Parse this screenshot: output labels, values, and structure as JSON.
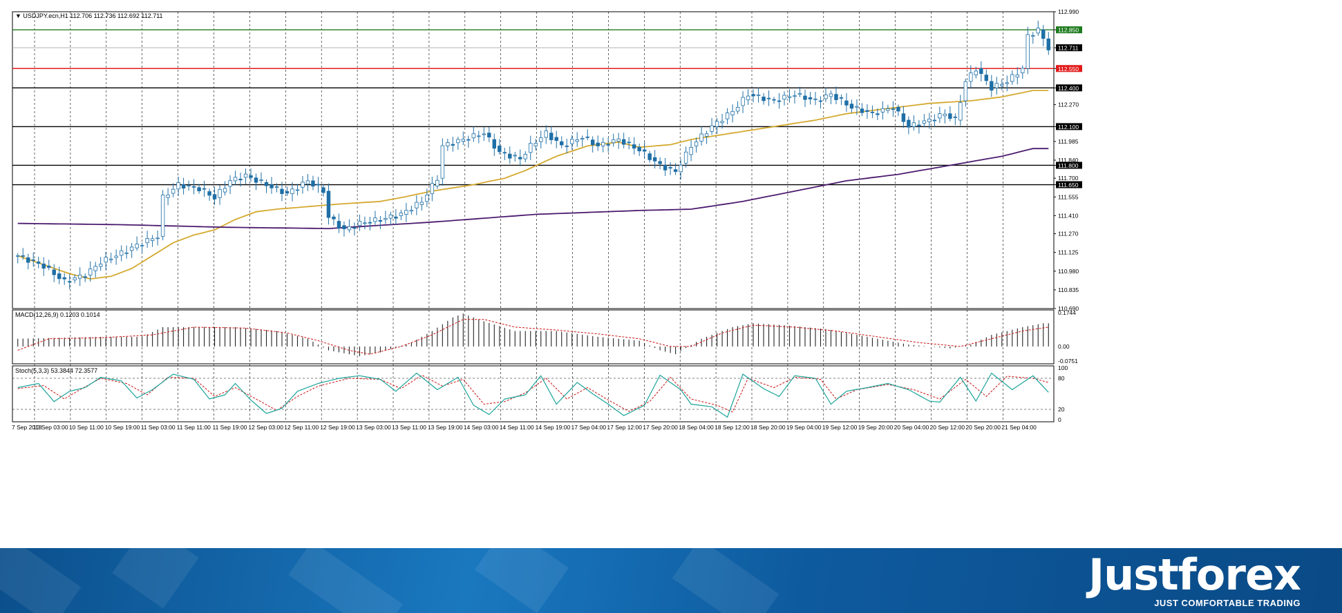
{
  "chart_data": [
    {
      "type": "candlestick",
      "title": "USDJPY.ecn,H1",
      "ohlc_header": "112.706 112.736 112.692 112.711",
      "last_price": "112.711",
      "ylim": [
        110.69,
        112.99
      ],
      "price_ticks": [
        "112.990",
        "112.850",
        "112.711",
        "112.550",
        "112.400",
        "112.270",
        "112.100",
        "111.985",
        "111.840",
        "111.800",
        "111.700",
        "111.650",
        "111.555",
        "111.410",
        "111.270",
        "111.125",
        "110.980",
        "110.835",
        "110.690"
      ],
      "grid": "dashed vertical",
      "levels": [
        {
          "price": 112.85,
          "label": "112.850",
          "color": "#1e7a1e"
        },
        {
          "price": 112.55,
          "label": "112.550",
          "color": "#e21a1a"
        },
        {
          "price": 112.4,
          "label": "112.400",
          "color": "#000000"
        },
        {
          "price": 112.1,
          "label": "112.100",
          "color": "#000000"
        },
        {
          "price": 111.8,
          "label": "111.800",
          "color": "#000000"
        },
        {
          "price": 111.65,
          "label": "111.650",
          "color": "#000000"
        }
      ],
      "moving_averages": [
        {
          "color": "#d4a92f",
          "anchors": [
            [
              0,
              111.1
            ],
            [
              5,
              111.03
            ],
            [
              10,
              110.96
            ],
            [
              14,
              110.92
            ],
            [
              18,
              110.94
            ],
            [
              22,
              111.0
            ],
            [
              26,
              111.1
            ],
            [
              30,
              111.2
            ],
            [
              34,
              111.26
            ],
            [
              38,
              111.3
            ],
            [
              42,
              111.38
            ],
            [
              46,
              111.44
            ],
            [
              50,
              111.46
            ],
            [
              56,
              111.48
            ],
            [
              62,
              111.5
            ],
            [
              70,
              111.52
            ],
            [
              74,
              111.55
            ],
            [
              80,
              111.6
            ],
            [
              88,
              111.65
            ],
            [
              94,
              111.7
            ],
            [
              98,
              111.76
            ],
            [
              104,
              111.87
            ],
            [
              110,
              111.95
            ],
            [
              116,
              111.98
            ],
            [
              120,
              111.94
            ],
            [
              126,
              111.96
            ],
            [
              130,
              112.0
            ],
            [
              138,
              112.05
            ],
            [
              146,
              112.1
            ],
            [
              154,
              112.15
            ],
            [
              160,
              112.2
            ],
            [
              166,
              112.23
            ],
            [
              172,
              112.26
            ],
            [
              176,
              112.28
            ],
            [
              184,
              112.3
            ],
            [
              190,
              112.33
            ],
            [
              196,
              112.38
            ]
          ]
        },
        {
          "color": "#4b1a6e",
          "anchors": [
            [
              0,
              111.35
            ],
            [
              20,
              111.34
            ],
            [
              40,
              111.32
            ],
            [
              60,
              111.31
            ],
            [
              80,
              111.36
            ],
            [
              100,
              111.42
            ],
            [
              120,
              111.45
            ],
            [
              130,
              111.46
            ],
            [
              140,
              111.52
            ],
            [
              150,
              111.6
            ],
            [
              160,
              111.68
            ],
            [
              170,
              111.73
            ],
            [
              180,
              111.8
            ],
            [
              190,
              111.87
            ],
            [
              196,
              111.93
            ]
          ]
        }
      ],
      "path_anchors": [
        [
          0,
          111.1
        ],
        [
          5,
          111.02
        ],
        [
          9,
          110.9
        ],
        [
          13,
          110.95
        ],
        [
          16,
          111.05
        ],
        [
          20,
          111.12
        ],
        [
          24,
          111.2
        ],
        [
          27,
          111.25
        ],
        [
          28,
          111.55
        ],
        [
          31,
          111.65
        ],
        [
          35,
          111.62
        ],
        [
          38,
          111.55
        ],
        [
          41,
          111.68
        ],
        [
          44,
          111.72
        ],
        [
          48,
          111.65
        ],
        [
          52,
          111.58
        ],
        [
          56,
          111.68
        ],
        [
          59,
          111.6
        ],
        [
          60,
          111.4
        ],
        [
          63,
          111.3
        ],
        [
          66,
          111.35
        ],
        [
          70,
          111.38
        ],
        [
          74,
          111.42
        ],
        [
          78,
          111.52
        ],
        [
          81,
          111.7
        ],
        [
          82,
          111.95
        ],
        [
          86,
          112.0
        ],
        [
          90,
          112.05
        ],
        [
          93,
          111.9
        ],
        [
          97,
          111.85
        ],
        [
          99,
          111.95
        ],
        [
          102,
          112.05
        ],
        [
          105,
          111.95
        ],
        [
          109,
          112.02
        ],
        [
          112,
          111.95
        ],
        [
          116,
          112.0
        ],
        [
          120,
          111.92
        ],
        [
          124,
          111.8
        ],
        [
          127,
          111.75
        ],
        [
          130,
          111.95
        ],
        [
          134,
          112.1
        ],
        [
          138,
          112.22
        ],
        [
          141,
          112.35
        ],
        [
          146,
          112.3
        ],
        [
          150,
          112.35
        ],
        [
          154,
          112.3
        ],
        [
          157,
          112.35
        ],
        [
          161,
          112.25
        ],
        [
          165,
          112.2
        ],
        [
          169,
          112.25
        ],
        [
          172,
          112.1
        ],
        [
          176,
          112.15
        ],
        [
          179,
          112.2
        ],
        [
          181,
          112.15
        ],
        [
          183,
          112.45
        ],
        [
          185,
          112.55
        ],
        [
          188,
          112.4
        ],
        [
          191,
          112.45
        ],
        [
          194,
          112.55
        ],
        [
          195,
          112.8
        ],
        [
          197,
          112.85
        ],
        [
          199,
          112.71
        ]
      ],
      "x_tick_labels": [
        "7 Sep 2018",
        "10 Sep 03:00",
        "10 Sep 11:00",
        "10 Sep 19:00",
        "11 Sep 03:00",
        "11 Sep 11:00",
        "11 Sep 19:00",
        "12 Sep 03:00",
        "12 Sep 11:00",
        "12 Sep 19:00",
        "13 Sep 03:00",
        "13 Sep 11:00",
        "13 Sep 19:00",
        "14 Sep 03:00",
        "14 Sep 11:00",
        "14 Sep 19:00",
        "17 Sep 04:00",
        "17 Sep 12:00",
        "17 Sep 20:00",
        "18 Sep 04:00",
        "18 Sep 12:00",
        "18 Sep 20:00",
        "19 Sep 04:00",
        "19 Sep 12:00",
        "19 Sep 20:00",
        "20 Sep 04:00",
        "20 Sep 12:00",
        "20 Sep 20:00",
        "21 Sep 04:00"
      ]
    },
    {
      "type": "histogram",
      "title": "MACD(12,26,9) 0.1203 0.1014",
      "ylim": [
        -0.0751,
        0.1744
      ],
      "ticks": [
        "0.1744",
        "0.00",
        "-0.0751"
      ],
      "signal_color": "#cc1111",
      "hist_anchors": [
        [
          0,
          0.04
        ],
        [
          8,
          0.045
        ],
        [
          16,
          0.05
        ],
        [
          24,
          0.05
        ],
        [
          28,
          0.1
        ],
        [
          34,
          0.1
        ],
        [
          42,
          0.1
        ],
        [
          50,
          0.08
        ],
        [
          56,
          0.04
        ],
        [
          60,
          -0.02
        ],
        [
          66,
          -0.05
        ],
        [
          70,
          -0.03
        ],
        [
          76,
          0.02
        ],
        [
          80,
          0.08
        ],
        [
          84,
          0.15
        ],
        [
          86,
          0.17
        ],
        [
          90,
          0.13
        ],
        [
          96,
          0.08
        ],
        [
          104,
          0.08
        ],
        [
          112,
          0.05
        ],
        [
          120,
          0.03
        ],
        [
          124,
          -0.02
        ],
        [
          127,
          -0.04
        ],
        [
          132,
          0.04
        ],
        [
          138,
          0.1
        ],
        [
          142,
          0.12
        ],
        [
          148,
          0.11
        ],
        [
          156,
          0.09
        ],
        [
          164,
          0.05
        ],
        [
          172,
          0.01
        ],
        [
          180,
          -0.01
        ],
        [
          184,
          0.01
        ],
        [
          188,
          0.06
        ],
        [
          194,
          0.1
        ],
        [
          198,
          0.12
        ]
      ],
      "signal_anchors": [
        [
          0,
          -0.02
        ],
        [
          6,
          0.04
        ],
        [
          16,
          0.045
        ],
        [
          26,
          0.06
        ],
        [
          34,
          0.1
        ],
        [
          44,
          0.095
        ],
        [
          52,
          0.07
        ],
        [
          58,
          0.03
        ],
        [
          64,
          -0.02
        ],
        [
          68,
          -0.04
        ],
        [
          74,
          0.0
        ],
        [
          80,
          0.06
        ],
        [
          86,
          0.14
        ],
        [
          90,
          0.14
        ],
        [
          96,
          0.1
        ],
        [
          104,
          0.085
        ],
        [
          112,
          0.065
        ],
        [
          120,
          0.04
        ],
        [
          126,
          0.0
        ],
        [
          130,
          0.0
        ],
        [
          136,
          0.07
        ],
        [
          142,
          0.11
        ],
        [
          150,
          0.1
        ],
        [
          158,
          0.08
        ],
        [
          166,
          0.05
        ],
        [
          174,
          0.02
        ],
        [
          182,
          0.0
        ],
        [
          188,
          0.04
        ],
        [
          194,
          0.08
        ],
        [
          199,
          0.1
        ]
      ]
    },
    {
      "type": "line",
      "title": "Stoch(5,3,3) 53.3844 72.3577",
      "ylim": [
        0,
        100
      ],
      "ticks": [
        "100",
        "80",
        "20",
        "0"
      ],
      "levels": [
        80,
        20
      ],
      "main_color": "#1aa39a",
      "signal_color": "#cc1111",
      "k_anchors": [
        [
          0,
          62
        ],
        [
          4,
          70
        ],
        [
          7,
          35
        ],
        [
          10,
          55
        ],
        [
          13,
          62
        ],
        [
          16,
          82
        ],
        [
          20,
          75
        ],
        [
          23,
          42
        ],
        [
          26,
          58
        ],
        [
          30,
          88
        ],
        [
          34,
          78
        ],
        [
          37,
          40
        ],
        [
          40,
          48
        ],
        [
          42,
          70
        ],
        [
          45,
          38
        ],
        [
          48,
          12
        ],
        [
          51,
          22
        ],
        [
          54,
          55
        ],
        [
          58,
          70
        ],
        [
          62,
          80
        ],
        [
          66,
          85
        ],
        [
          70,
          78
        ],
        [
          73,
          55
        ],
        [
          77,
          90
        ],
        [
          81,
          58
        ],
        [
          85,
          82
        ],
        [
          88,
          28
        ],
        [
          91,
          10
        ],
        [
          94,
          40
        ],
        [
          98,
          48
        ],
        [
          101,
          85
        ],
        [
          104,
          30
        ],
        [
          108,
          72
        ],
        [
          111,
          50
        ],
        [
          114,
          30
        ],
        [
          117,
          8
        ],
        [
          121,
          28
        ],
        [
          124,
          86
        ],
        [
          128,
          58
        ],
        [
          130,
          30
        ],
        [
          134,
          25
        ],
        [
          137,
          5
        ],
        [
          140,
          88
        ],
        [
          144,
          60
        ],
        [
          147,
          45
        ],
        [
          150,
          85
        ],
        [
          154,
          80
        ],
        [
          157,
          30
        ],
        [
          160,
          55
        ],
        [
          164,
          62
        ],
        [
          168,
          70
        ],
        [
          172,
          58
        ],
        [
          176,
          36
        ],
        [
          178,
          34
        ],
        [
          182,
          82
        ],
        [
          185,
          36
        ],
        [
          188,
          90
        ],
        [
          192,
          58
        ],
        [
          196,
          85
        ],
        [
          199,
          53
        ]
      ],
      "d_anchors": [
        [
          0,
          60
        ],
        [
          5,
          66
        ],
        [
          9,
          40
        ],
        [
          12,
          58
        ],
        [
          16,
          80
        ],
        [
          21,
          70
        ],
        [
          25,
          48
        ],
        [
          29,
          82
        ],
        [
          34,
          80
        ],
        [
          38,
          45
        ],
        [
          42,
          62
        ],
        [
          46,
          40
        ],
        [
          50,
          18
        ],
        [
          54,
          45
        ],
        [
          58,
          65
        ],
        [
          64,
          80
        ],
        [
          70,
          78
        ],
        [
          74,
          60
        ],
        [
          78,
          86
        ],
        [
          82,
          65
        ],
        [
          86,
          78
        ],
        [
          90,
          30
        ],
        [
          94,
          35
        ],
        [
          98,
          52
        ],
        [
          102,
          80
        ],
        [
          106,
          40
        ],
        [
          110,
          62
        ],
        [
          114,
          38
        ],
        [
          118,
          16
        ],
        [
          122,
          35
        ],
        [
          126,
          82
        ],
        [
          130,
          40
        ],
        [
          135,
          28
        ],
        [
          138,
          15
        ],
        [
          141,
          80
        ],
        [
          146,
          62
        ],
        [
          150,
          82
        ],
        [
          155,
          78
        ],
        [
          158,
          40
        ],
        [
          162,
          58
        ],
        [
          168,
          68
        ],
        [
          173,
          58
        ],
        [
          178,
          40
        ],
        [
          183,
          78
        ],
        [
          187,
          45
        ],
        [
          191,
          84
        ],
        [
          196,
          80
        ],
        [
          199,
          72
        ]
      ]
    }
  ],
  "logo": {
    "name": "Justforex",
    "tagline": "JUST COMFORTABLE TRADING"
  }
}
